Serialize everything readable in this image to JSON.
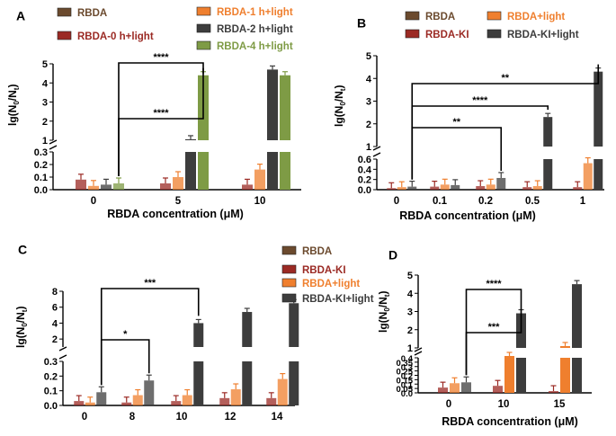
{
  "colors": {
    "RBDA": "#6b4a2e",
    "RBDA-0 h+light": "#9b2a24",
    "RBDA-1 h+light": "#ef7f2e",
    "RBDA-2 h+light": "#3d3d3d",
    "RBDA-4 h+light": "#7e9b45",
    "RBDA-KI": "#9b2a24",
    "RBDA+light": "#ef7f2e",
    "RBDA-KI+light": "#3d3d3d"
  },
  "y_axis_label": {
    "main": "lg(N",
    "sub0": "0",
    "mid": "/N",
    "subt": "t",
    "end": ")"
  },
  "chart_data": [
    {
      "panel": "A",
      "type": "bar",
      "xlabel": "RBDA concentration (μM)",
      "categories": [
        "0",
        "5",
        "10"
      ],
      "series": [
        {
          "name": "RBDA",
          "values": [
            null,
            null,
            null
          ]
        },
        {
          "name": "RBDA-0 h+light",
          "values": [
            0.08,
            0.05,
            0.04
          ]
        },
        {
          "name": "RBDA-1 h+light",
          "values": [
            0.03,
            0.1,
            0.16
          ]
        },
        {
          "name": "RBDA-2 h+light",
          "values": [
            0.04,
            1.05,
            4.7
          ]
        },
        {
          "name": "RBDA-4 h+light",
          "values": [
            0.05,
            4.4,
            4.4
          ]
        }
      ],
      "ylim_lower": [
        0,
        0.3
      ],
      "ylim_upper": [
        1,
        5
      ],
      "lower_ticks": [
        "0.0",
        "0.1",
        "0.2",
        "0.3"
      ],
      "upper_ticks": [
        "1",
        "2",
        "3",
        "4",
        "5"
      ],
      "significance": [
        {
          "from": "0",
          "to": "5",
          "label": "****"
        },
        {
          "from": "0",
          "to": "5",
          "label": "****"
        }
      ]
    },
    {
      "panel": "B",
      "type": "bar",
      "xlabel": "RBDA concentration  (μM)",
      "categories": [
        "0",
        "0.1",
        "0.2",
        "0.5",
        "1"
      ],
      "series": [
        {
          "name": "RBDA",
          "values": [
            null,
            null,
            null,
            null,
            null
          ]
        },
        {
          "name": "RBDA-KI",
          "values": [
            0.03,
            0.06,
            0.07,
            0.05,
            0.05
          ]
        },
        {
          "name": "RBDA+light",
          "values": [
            0.05,
            0.1,
            0.1,
            0.07,
            0.52
          ]
        },
        {
          "name": "RBDA-KI+light",
          "values": [
            0.06,
            0.09,
            0.23,
            2.3,
            4.3
          ]
        }
      ],
      "ylim_lower": [
        0,
        0.6
      ],
      "ylim_upper": [
        1,
        5
      ],
      "lower_ticks": [
        "0.0",
        "0.2",
        "0.4",
        "0.6"
      ],
      "upper_ticks": [
        "1",
        "2",
        "3",
        "4",
        "5"
      ],
      "significance": [
        {
          "from": "0",
          "to": "1",
          "label": "**"
        },
        {
          "from": "0",
          "to": "0.5",
          "label": "****"
        },
        {
          "from": "0",
          "to": "0.2",
          "label": "**"
        }
      ]
    },
    {
      "panel": "C",
      "type": "bar",
      "categories": [
        "0",
        "8",
        "10",
        "12",
        "14"
      ],
      "series": [
        {
          "name": "RBDA",
          "values": [
            null,
            null,
            null,
            null,
            null
          ]
        },
        {
          "name": "RBDA-KI",
          "values": [
            0.03,
            0.02,
            0.03,
            0.05,
            0.05
          ]
        },
        {
          "name": "RBDA+light",
          "values": [
            0.02,
            0.07,
            0.07,
            0.11,
            0.18
          ]
        },
        {
          "name": "RBDA-KI+light",
          "values": [
            0.09,
            0.17,
            4.0,
            5.4,
            6.5
          ]
        }
      ],
      "ylim_lower": [
        0,
        0.3
      ],
      "ylim_upper": [
        1,
        8
      ],
      "lower_ticks": [
        "0.0",
        "0.1",
        "0.2",
        "0.3"
      ],
      "upper_ticks": [
        "2",
        "4",
        "6",
        "8"
      ],
      "significance": [
        {
          "from": "0",
          "to": "10",
          "label": "***"
        },
        {
          "from": "0",
          "to": "8",
          "label": "*"
        }
      ]
    },
    {
      "panel": "D",
      "type": "bar",
      "xlabel": "RBDA concentration  (μM)",
      "categories": [
        "0",
        "10",
        "15"
      ],
      "series": [
        {
          "name": "RBDA",
          "values": [
            null,
            null,
            null
          ]
        },
        {
          "name": "RBDA-KI",
          "values": [
            0.06,
            0.08,
            0.02
          ]
        },
        {
          "name": "RBDA+light",
          "values": [
            0.11,
            0.85,
            1.1
          ]
        },
        {
          "name": "RBDA-KI+light",
          "values": [
            0.12,
            2.9,
            4.5
          ]
        }
      ],
      "ylim_lower": [
        0,
        0.4
      ],
      "ylim_upper": [
        1,
        5
      ],
      "lower_ticks": [
        "0.0",
        "0.05",
        "0.1",
        "0.15",
        "0.2",
        "0.25",
        "0.3",
        "0.35",
        "0.4"
      ],
      "upper_ticks": [
        "1",
        "2",
        "3",
        "4",
        "5"
      ],
      "significance": [
        {
          "from": "0",
          "to": "10",
          "label": "****"
        },
        {
          "from": "0",
          "to": "10",
          "label": "***"
        }
      ]
    }
  ]
}
